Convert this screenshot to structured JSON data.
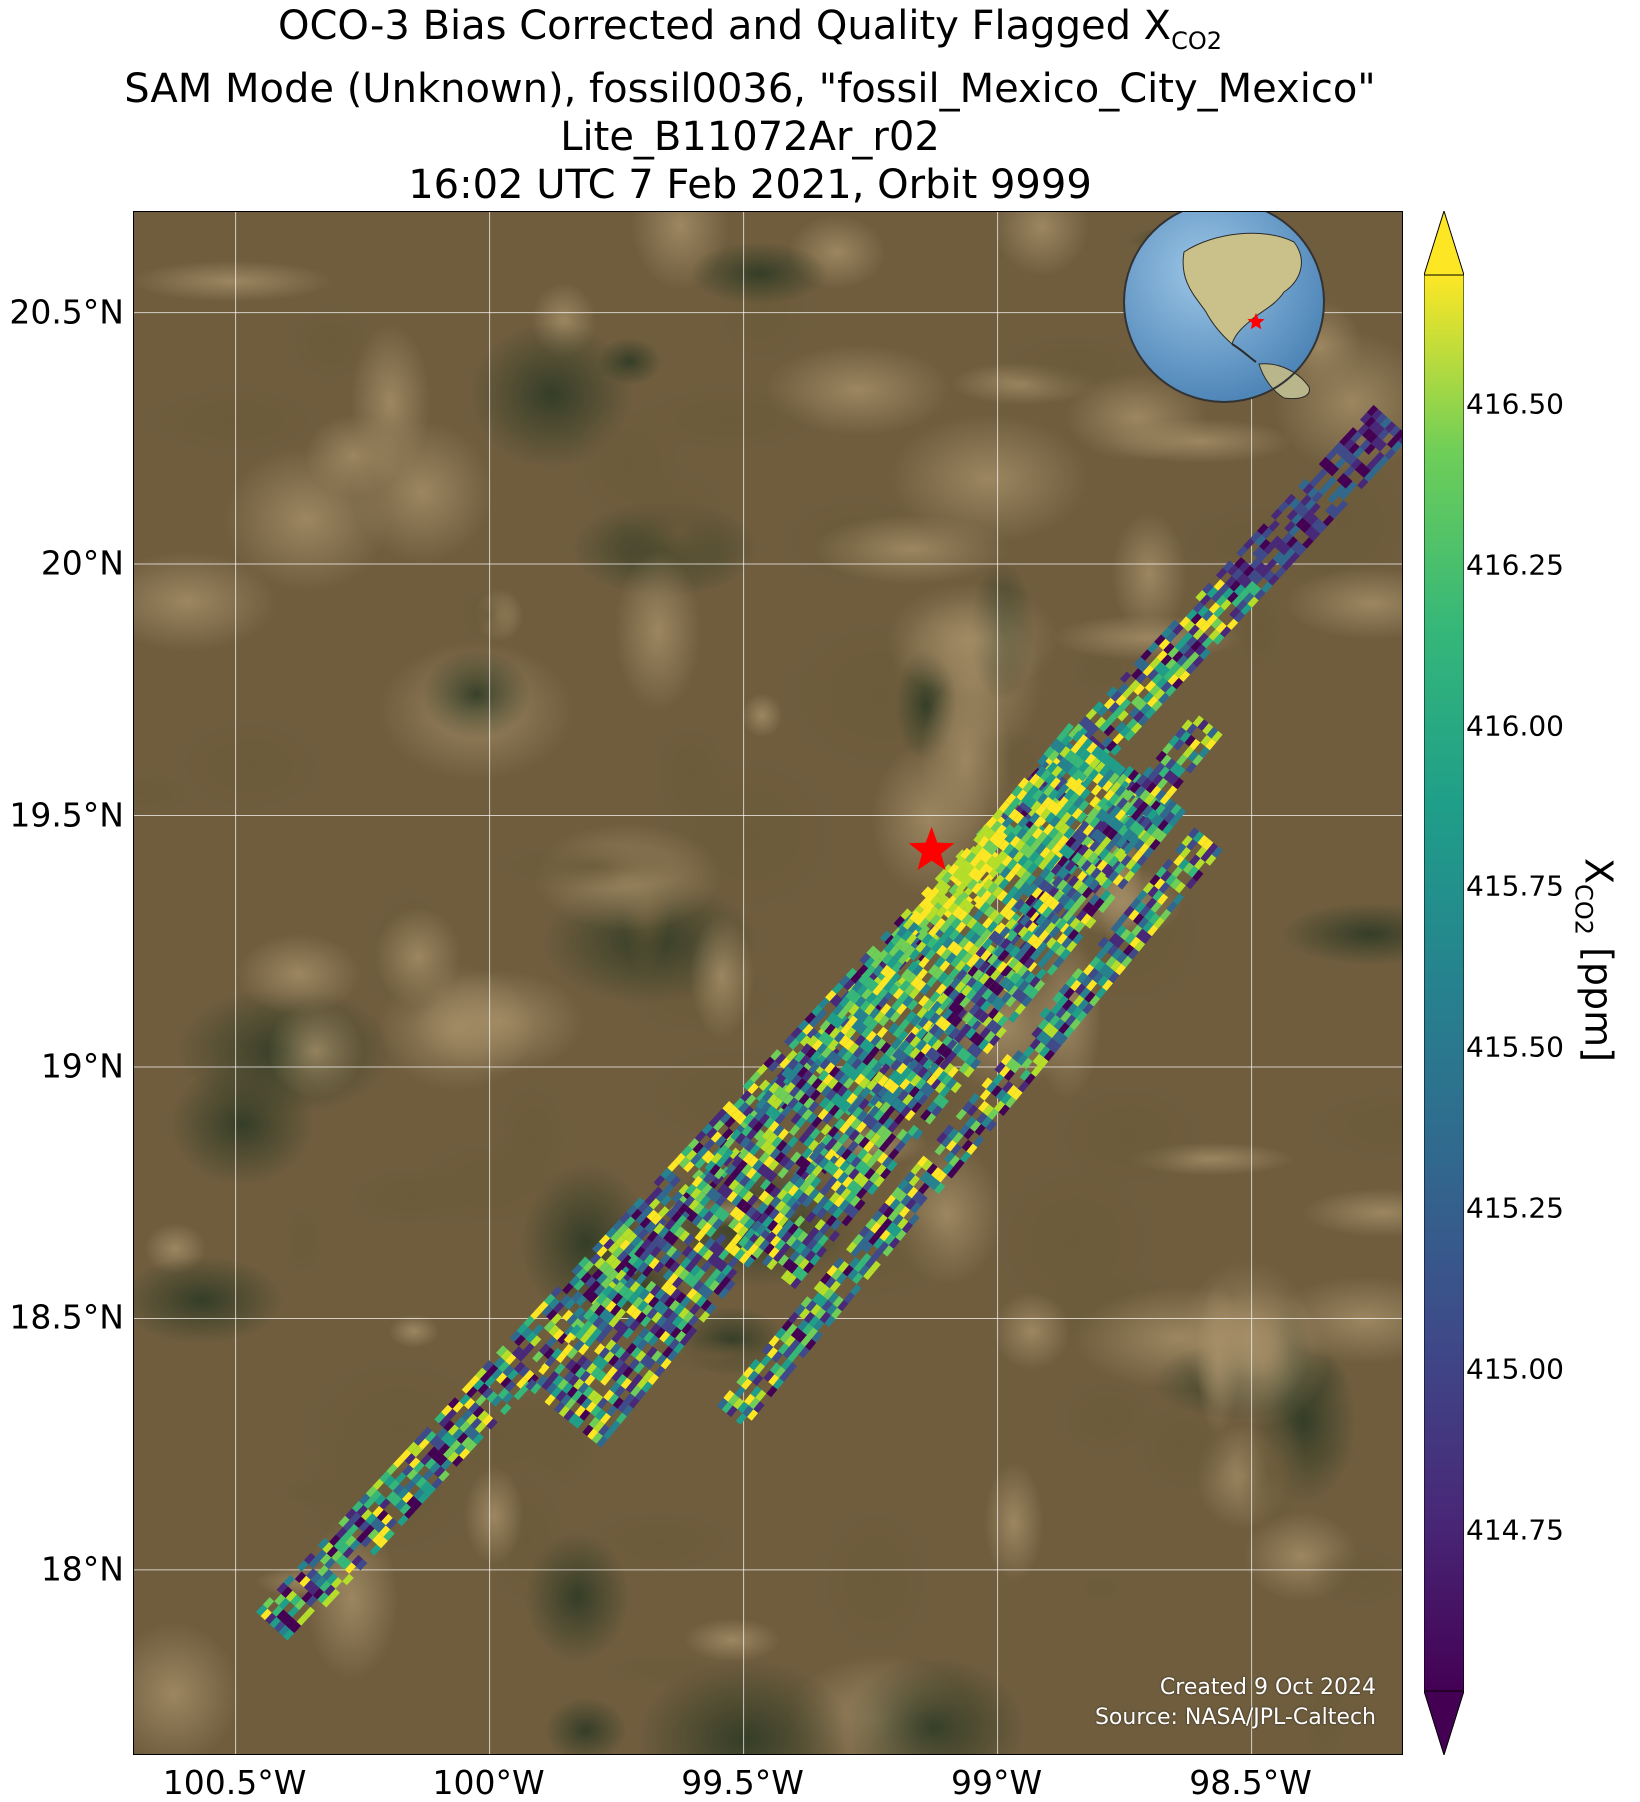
{
  "title": {
    "line1_prefix": "OCO-3 Bias Corrected and Quality Flagged X",
    "line1_sub": "CO2",
    "line2": "SAM Mode (Unknown), fossil0036, \"fossil_Mexico_City_Mexico\"",
    "line3": "Lite_B11072Ar_r02",
    "line4": "16:02 UTC 7 Feb 2021, Orbit 9999"
  },
  "map": {
    "lon_range": [
      -100.7,
      -98.2
    ],
    "lat_range": [
      17.63,
      20.7
    ],
    "lat_ticks": [
      {
        "value": 20.5,
        "label": "20.5°N"
      },
      {
        "value": 20.0,
        "label": "20°N"
      },
      {
        "value": 19.5,
        "label": "19.5°N"
      },
      {
        "value": 19.0,
        "label": "19°N"
      },
      {
        "value": 18.5,
        "label": "18.5°N"
      },
      {
        "value": 18.0,
        "label": "18°N"
      }
    ],
    "lon_ticks": [
      {
        "value": -100.5,
        "label": "100.5°W"
      },
      {
        "value": -100.0,
        "label": "100°W"
      },
      {
        "value": -99.5,
        "label": "99.5°W"
      },
      {
        "value": -99.0,
        "label": "99°W"
      },
      {
        "value": -98.5,
        "label": "98.5°W"
      }
    ],
    "target_marker": {
      "lon": -99.13,
      "lat": 19.43,
      "color": "#ff0000"
    },
    "grid": true,
    "background": "satellite imagery",
    "inset_globe": {
      "position": "top-right",
      "marker_color": "#ff0000"
    }
  },
  "credit": {
    "created": "Created 9 Oct 2024",
    "source": "Source: NASA/JPL-Caltech"
  },
  "colorbar": {
    "label_prefix": "X",
    "label_sub": "CO2",
    "label_suffix": "[ppm]",
    "min": 414.5,
    "max": 416.7,
    "colormap": "viridis",
    "ticks": [
      {
        "value": 414.75,
        "label": "414.75"
      },
      {
        "value": 415.0,
        "label": "415.00"
      },
      {
        "value": 415.25,
        "label": "415.25"
      },
      {
        "value": 415.5,
        "label": "415.50"
      },
      {
        "value": 415.75,
        "label": "415.75"
      },
      {
        "value": 416.0,
        "label": "416.00"
      },
      {
        "value": 416.25,
        "label": "416.25"
      },
      {
        "value": 416.5,
        "label": "416.50"
      }
    ]
  },
  "swaths": [
    {
      "lon0": -100.42,
      "lat0": 17.88,
      "lon1": -98.22,
      "lat1": 20.28,
      "half_width": 0.045,
      "strength": "center"
    },
    {
      "lon0": -99.85,
      "lat0": 18.3,
      "lon1": -98.78,
      "lat1": 19.62,
      "half_width": 0.1,
      "strength": "city"
    },
    {
      "lon0": -99.45,
      "lat0": 18.6,
      "lon1": -98.68,
      "lat1": 19.55,
      "half_width": 0.07,
      "strength": "normal"
    },
    {
      "lon0": -99.52,
      "lat0": 18.3,
      "lon1": -98.58,
      "lat1": 19.45,
      "half_width": 0.04,
      "strength": "normal"
    },
    {
      "lon0": -99.32,
      "lat0": 18.78,
      "lon1": -98.58,
      "lat1": 19.68,
      "half_width": 0.035,
      "strength": "normal"
    }
  ]
}
